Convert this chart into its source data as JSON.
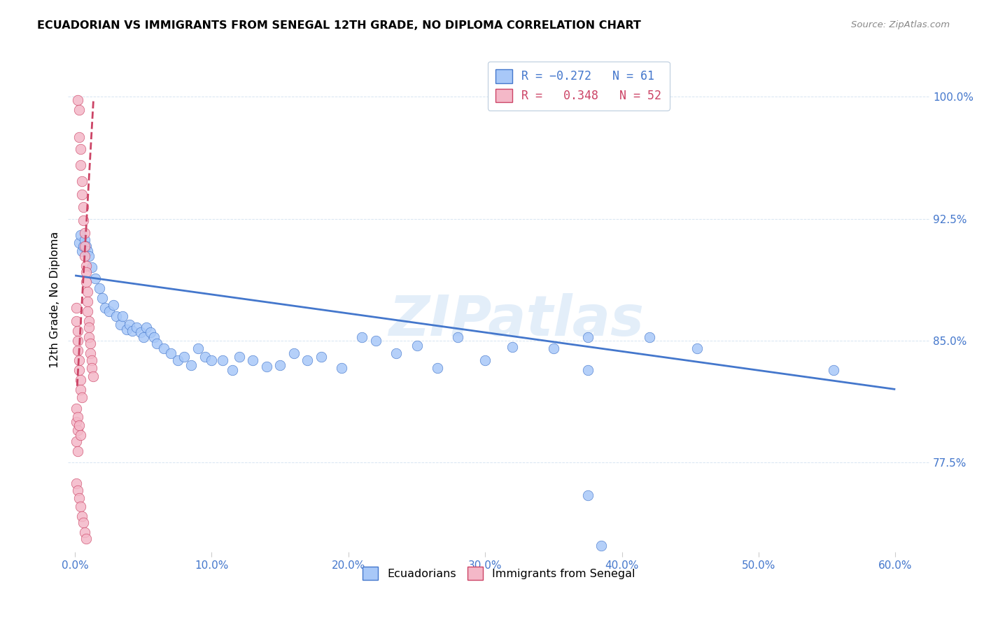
{
  "title": "ECUADORIAN VS IMMIGRANTS FROM SENEGAL 12TH GRADE, NO DIPLOMA CORRELATION CHART",
  "source": "Source: ZipAtlas.com",
  "xlabel_ticks": [
    "0.0%",
    "10.0%",
    "20.0%",
    "30.0%",
    "40.0%",
    "50.0%",
    "60.0%"
  ],
  "xlabel_vals": [
    0.0,
    0.1,
    0.2,
    0.3,
    0.4,
    0.5,
    0.6
  ],
  "ylabel_ticks": [
    "77.5%",
    "85.0%",
    "92.5%",
    "100.0%"
  ],
  "ylabel_vals": [
    0.775,
    0.85,
    0.925,
    1.0
  ],
  "xlim": [
    -0.005,
    0.625
  ],
  "ylim": [
    0.72,
    1.03
  ],
  "watermark": "ZIPatlas",
  "blue_color": "#a8c8f8",
  "pink_color": "#f4b8c8",
  "blue_line_color": "#4477cc",
  "pink_line_color": "#cc4466",
  "blue_scatter": [
    [
      0.003,
      0.91
    ],
    [
      0.004,
      0.915
    ],
    [
      0.005,
      0.905
    ],
    [
      0.006,
      0.908
    ],
    [
      0.007,
      0.912
    ],
    [
      0.008,
      0.908
    ],
    [
      0.009,
      0.905
    ],
    [
      0.01,
      0.902
    ],
    [
      0.012,
      0.895
    ],
    [
      0.015,
      0.888
    ],
    [
      0.018,
      0.882
    ],
    [
      0.02,
      0.876
    ],
    [
      0.022,
      0.87
    ],
    [
      0.025,
      0.868
    ],
    [
      0.028,
      0.872
    ],
    [
      0.03,
      0.865
    ],
    [
      0.033,
      0.86
    ],
    [
      0.035,
      0.865
    ],
    [
      0.038,
      0.857
    ],
    [
      0.04,
      0.86
    ],
    [
      0.042,
      0.856
    ],
    [
      0.045,
      0.858
    ],
    [
      0.048,
      0.855
    ],
    [
      0.05,
      0.852
    ],
    [
      0.052,
      0.858
    ],
    [
      0.055,
      0.855
    ],
    [
      0.058,
      0.852
    ],
    [
      0.06,
      0.848
    ],
    [
      0.065,
      0.845
    ],
    [
      0.07,
      0.842
    ],
    [
      0.075,
      0.838
    ],
    [
      0.08,
      0.84
    ],
    [
      0.085,
      0.835
    ],
    [
      0.09,
      0.845
    ],
    [
      0.095,
      0.84
    ],
    [
      0.1,
      0.838
    ],
    [
      0.108,
      0.838
    ],
    [
      0.115,
      0.832
    ],
    [
      0.12,
      0.84
    ],
    [
      0.13,
      0.838
    ],
    [
      0.14,
      0.834
    ],
    [
      0.15,
      0.835
    ],
    [
      0.16,
      0.842
    ],
    [
      0.17,
      0.838
    ],
    [
      0.18,
      0.84
    ],
    [
      0.195,
      0.833
    ],
    [
      0.21,
      0.852
    ],
    [
      0.22,
      0.85
    ],
    [
      0.235,
      0.842
    ],
    [
      0.25,
      0.847
    ],
    [
      0.265,
      0.833
    ],
    [
      0.28,
      0.852
    ],
    [
      0.3,
      0.838
    ],
    [
      0.32,
      0.846
    ],
    [
      0.35,
      0.845
    ],
    [
      0.375,
      0.852
    ],
    [
      0.42,
      0.852
    ],
    [
      0.455,
      0.845
    ],
    [
      0.375,
      0.832
    ],
    [
      0.555,
      0.832
    ],
    [
      0.375,
      0.755
    ],
    [
      0.385,
      0.724
    ]
  ],
  "pink_scatter": [
    [
      0.002,
      0.998
    ],
    [
      0.003,
      0.992
    ],
    [
      0.003,
      0.975
    ],
    [
      0.004,
      0.968
    ],
    [
      0.004,
      0.958
    ],
    [
      0.005,
      0.948
    ],
    [
      0.005,
      0.94
    ],
    [
      0.006,
      0.932
    ],
    [
      0.006,
      0.924
    ],
    [
      0.007,
      0.916
    ],
    [
      0.007,
      0.908
    ],
    [
      0.007,
      0.902
    ],
    [
      0.008,
      0.896
    ],
    [
      0.008,
      0.892
    ],
    [
      0.008,
      0.886
    ],
    [
      0.009,
      0.88
    ],
    [
      0.009,
      0.874
    ],
    [
      0.009,
      0.868
    ],
    [
      0.01,
      0.862
    ],
    [
      0.01,
      0.858
    ],
    [
      0.01,
      0.852
    ],
    [
      0.011,
      0.848
    ],
    [
      0.011,
      0.842
    ],
    [
      0.012,
      0.838
    ],
    [
      0.012,
      0.833
    ],
    [
      0.013,
      0.828
    ],
    [
      0.001,
      0.87
    ],
    [
      0.001,
      0.862
    ],
    [
      0.002,
      0.856
    ],
    [
      0.002,
      0.85
    ],
    [
      0.002,
      0.844
    ],
    [
      0.003,
      0.838
    ],
    [
      0.003,
      0.832
    ],
    [
      0.004,
      0.826
    ],
    [
      0.004,
      0.82
    ],
    [
      0.005,
      0.815
    ],
    [
      0.001,
      0.8
    ],
    [
      0.002,
      0.795
    ],
    [
      0.001,
      0.788
    ],
    [
      0.002,
      0.782
    ],
    [
      0.001,
      0.762
    ],
    [
      0.002,
      0.758
    ],
    [
      0.003,
      0.753
    ],
    [
      0.004,
      0.748
    ],
    [
      0.005,
      0.742
    ],
    [
      0.006,
      0.738
    ],
    [
      0.007,
      0.732
    ],
    [
      0.008,
      0.728
    ],
    [
      0.001,
      0.808
    ],
    [
      0.002,
      0.803
    ],
    [
      0.003,
      0.798
    ],
    [
      0.004,
      0.792
    ]
  ],
  "blue_trend_x": [
    0.0,
    0.6
  ],
  "blue_trend_y": [
    0.89,
    0.82
  ],
  "pink_trend_x": [
    0.0016,
    0.0135
  ],
  "pink_trend_y": [
    0.822,
    0.998
  ]
}
